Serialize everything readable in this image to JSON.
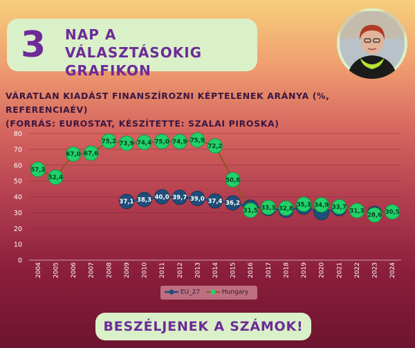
{
  "banner": {
    "number": "3",
    "line1": "NAP A VÁLASZTÁSOKIG",
    "line2": "GRAFIKON"
  },
  "chart_title": {
    "line1": "VÁRATLAN KIADÁST FINANSZÍROZNI KÉPTELENEK ARÁNYA (%, REFERENCIAÉV)",
    "line2": "(FORRÁS: EUROSTAT, KÉSZÍTETTE: SZALAI PIROSKA)"
  },
  "footer": {
    "label": "BESZÉLJENEK A SZÁMOK!"
  },
  "chart_data": {
    "type": "line",
    "title": "VÁRATLAN KIADÁST FINANSZÍROZNI KÉPTELENEK ARÁNYA (%, REFERENCIAÉV)",
    "x": [
      "2004",
      "2005",
      "2006",
      "2007",
      "2008",
      "2009",
      "2010",
      "2011",
      "2012",
      "2013",
      "2014",
      "2015",
      "2016",
      "2017",
      "2018",
      "2019",
      "2020",
      "2021",
      "2022",
      "2023",
      "2024"
    ],
    "ylim": [
      0,
      80
    ],
    "yticks": [
      0,
      10,
      20,
      30,
      40,
      50,
      60,
      70,
      80
    ],
    "grid": true,
    "legend": "bottom",
    "series": [
      {
        "name": "EU_27",
        "color": "#1f4e79",
        "values": [
          null,
          null,
          null,
          null,
          null,
          37.1,
          38.3,
          40.0,
          39.7,
          39.0,
          37.4,
          36.2,
          33.5,
          32.6,
          31.5,
          33.5,
          30.0,
          32.5,
          null,
          29.5,
          null
        ],
        "labels": [
          "",
          "",
          "",
          "",
          "",
          "37,1",
          "38,3",
          "40,0",
          "39,7",
          "39,0",
          "37,4",
          "36,2",
          "",
          "",
          "",
          "",
          "",
          "",
          "",
          "",
          ""
        ]
      },
      {
        "name": "Hungary",
        "color": "#21d26a",
        "values": [
          57.3,
          52.4,
          67.0,
          67.6,
          75.2,
          73.9,
          74.4,
          75.0,
          74.9,
          75.9,
          72.2,
          50.8,
          31.5,
          33.3,
          32.8,
          35.3,
          34.9,
          33.7,
          31.3,
          28.6,
          30.5
        ],
        "labels": [
          "57,3",
          "52,4",
          "67,0",
          "67,6",
          "75,2",
          "73,9",
          "74,4",
          "75,0",
          "74,9",
          "75,9",
          "72,2",
          "50,8",
          "31,5",
          "33,3",
          "32,8",
          "35,3",
          "34,9",
          "33,7",
          "31,3",
          "28,6",
          "30,5"
        ]
      }
    ]
  },
  "colors": {
    "accent": "#6d2a98",
    "panel": "#d9f0c8",
    "eu": "#1f4e79",
    "hungary": "#21d26a"
  },
  "avatar": {
    "icon": "portrait-photo"
  }
}
